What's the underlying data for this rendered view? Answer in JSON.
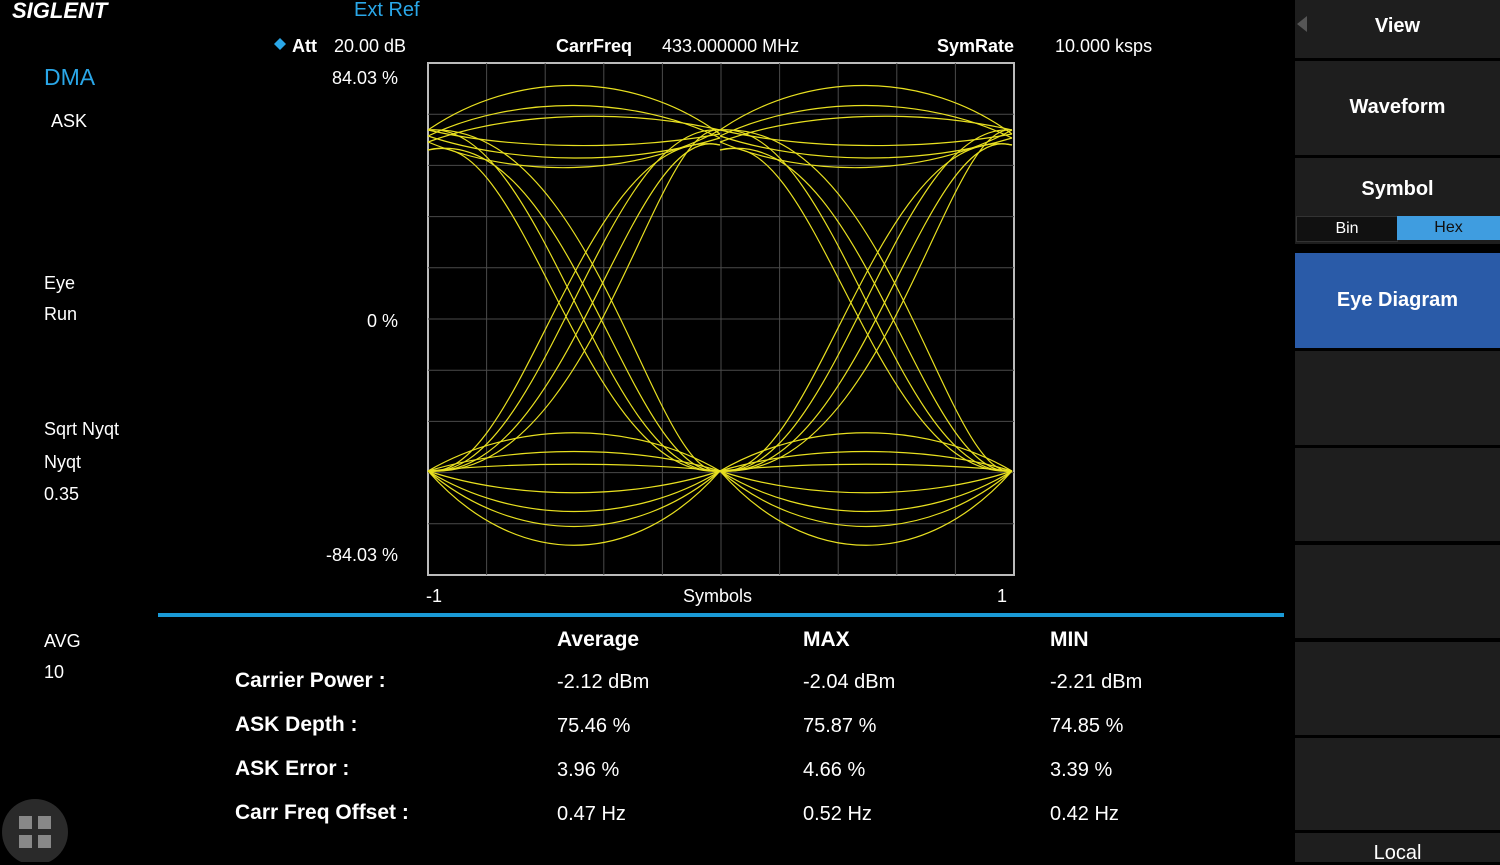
{
  "header": {
    "brand": "SIGLENT",
    "reference": "Ext Ref"
  },
  "status": {
    "att_label": "Att",
    "att_value": "20.00 dB",
    "carrfreq_label": "CarrFreq",
    "carrfreq_value": "433.000000 MHz",
    "symrate_label": "SymRate",
    "symrate_value": "10.000 ksps"
  },
  "left_panel": {
    "mode": "DMA",
    "modulation": "ASK",
    "view": "Eye",
    "state": "Run",
    "filter": "Sqrt Nyqt",
    "ref_filter": "Nyqt",
    "alpha": "0.35",
    "avg_label": "AVG",
    "avg_count": "10"
  },
  "plot": {
    "y_top": "84.03 %",
    "y_mid": "0 %",
    "y_bottom": "-84.03 %",
    "x_left": "-1",
    "x_label": "Symbols",
    "x_right": "1"
  },
  "table": {
    "columns": [
      "Average",
      "MAX",
      "MIN"
    ],
    "rows": [
      {
        "label": "Carrier Power :",
        "values": [
          "-2.12 dBm",
          "-2.04 dBm",
          "-2.21 dBm"
        ]
      },
      {
        "label": "ASK Depth :",
        "values": [
          "75.46 %",
          "75.87 %",
          "74.85 %"
        ]
      },
      {
        "label": "ASK Error :",
        "values": [
          "3.96 %",
          "4.66 %",
          "3.39 %"
        ]
      },
      {
        "label": "Carr Freq Offset :",
        "values": [
          "0.47 Hz",
          "0.52 Hz",
          "0.42 Hz"
        ]
      }
    ]
  },
  "menu": {
    "view": "View",
    "waveform": "Waveform",
    "symbol": "Symbol",
    "bin": "Bin",
    "hex": "Hex",
    "eye_diagram": "Eye Diagram",
    "footer": "Local"
  }
}
